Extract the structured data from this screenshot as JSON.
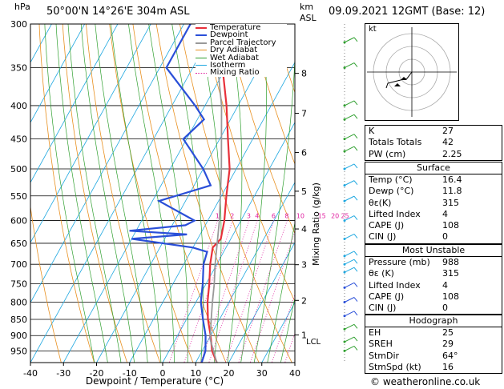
{
  "header": {
    "location": "50°00'N  14°26'E  304m  ASL",
    "datetime": "09.09.2021  12GMT  (Base: 12)",
    "hpa_unit": "hPa",
    "km_unit": "km",
    "asl_unit": "ASL",
    "footer": "© weatheronline.co.uk"
  },
  "colors": {
    "temperature": "#e8303a",
    "dewpoint": "#2a4fd8",
    "parcel": "#999999",
    "dry_adiabat": "#e89020",
    "wet_adiabat": "#30a030",
    "isotherm": "#20a8e0",
    "mixing_ratio": "#e020a0"
  },
  "legend": [
    {
      "label": "Temperature",
      "color": "#e8303a",
      "style": "solid"
    },
    {
      "label": "Dewpoint",
      "color": "#2a4fd8",
      "style": "solid"
    },
    {
      "label": "Parcel Trajectory",
      "color": "#999999",
      "style": "solid"
    },
    {
      "label": "Dry Adiabat",
      "color": "#e89020",
      "style": "solid"
    },
    {
      "label": "Wet Adiabat",
      "color": "#30a030",
      "style": "solid"
    },
    {
      "label": "Isotherm",
      "color": "#20a8e0",
      "style": "solid"
    },
    {
      "label": "Mixing Ratio",
      "color": "#e020a0",
      "style": "dotted"
    }
  ],
  "chart_data": {
    "type": "line",
    "xlabel": "Dewpoint / Temperature (°C)",
    "ylabel_right": "Mixing Ratio (g/kg)",
    "xlim": [
      -40,
      40
    ],
    "ylim": [
      300,
      990
    ],
    "x_ticks": [
      -40,
      -30,
      -20,
      -10,
      0,
      10,
      20,
      30,
      40
    ],
    "pressure_ticks": [
      300,
      350,
      400,
      450,
      500,
      550,
      600,
      650,
      700,
      750,
      800,
      850,
      900,
      950
    ],
    "km_ticks": [
      {
        "label": "8",
        "p": 357
      },
      {
        "label": "7",
        "p": 411
      },
      {
        "label": "6",
        "p": 472
      },
      {
        "label": "5",
        "p": 541
      },
      {
        "label": "4",
        "p": 618
      },
      {
        "label": "3",
        "p": 701
      },
      {
        "label": "2",
        "p": 795
      },
      {
        "label": "1",
        "p": 898
      }
    ],
    "lcl": {
      "label": "LCL",
      "p": 912
    },
    "mixing_ratio_labels": [
      "1",
      "2",
      "3",
      "4",
      "6",
      "8",
      "10",
      "15",
      "20",
      "25"
    ],
    "mixing_ratio_x": [
      -7,
      -2.5,
      2.5,
      5,
      10,
      14,
      17.5,
      24,
      28,
      31
    ],
    "series": [
      {
        "name": "Temperature",
        "points": [
          {
            "p": 990,
            "t": 16.4
          },
          {
            "p": 950,
            "t": 13
          },
          {
            "p": 900,
            "t": 10
          },
          {
            "p": 850,
            "t": 6.5
          },
          {
            "p": 800,
            "t": 3.5
          },
          {
            "p": 750,
            "t": 1
          },
          {
            "p": 700,
            "t": -2
          },
          {
            "p": 660,
            "t": -4
          },
          {
            "p": 640,
            "t": -3
          },
          {
            "p": 600,
            "t": -5
          },
          {
            "p": 550,
            "t": -8.5
          },
          {
            "p": 500,
            "t": -12
          },
          {
            "p": 450,
            "t": -17.5
          },
          {
            "p": 400,
            "t": -23.5
          },
          {
            "p": 350,
            "t": -31
          },
          {
            "p": 300,
            "t": -39
          }
        ]
      },
      {
        "name": "Dewpoint",
        "points": [
          {
            "p": 990,
            "t": 11.8
          },
          {
            "p": 950,
            "t": 11
          },
          {
            "p": 900,
            "t": 8.5
          },
          {
            "p": 850,
            "t": 5
          },
          {
            "p": 800,
            "t": 1.5
          },
          {
            "p": 750,
            "t": -1
          },
          {
            "p": 700,
            "t": -4
          },
          {
            "p": 670,
            "t": -5
          },
          {
            "p": 660,
            "t": -10
          },
          {
            "p": 640,
            "t": -30
          },
          {
            "p": 630,
            "t": -14
          },
          {
            "p": 622,
            "t": -32
          },
          {
            "p": 610,
            "t": -16
          },
          {
            "p": 600,
            "t": -14
          },
          {
            "p": 560,
            "t": -28
          },
          {
            "p": 530,
            "t": -15
          },
          {
            "p": 500,
            "t": -20
          },
          {
            "p": 450,
            "t": -31
          },
          {
            "p": 420,
            "t": -28
          },
          {
            "p": 400,
            "t": -33
          },
          {
            "p": 350,
            "t": -48
          },
          {
            "p": 300,
            "t": -48
          }
        ]
      },
      {
        "name": "Parcel Trajectory",
        "points": [
          {
            "p": 990,
            "t": 16.4
          },
          {
            "p": 912,
            "t": 10.5
          },
          {
            "p": 850,
            "t": 7.5
          },
          {
            "p": 800,
            "t": 5
          },
          {
            "p": 750,
            "t": 2.5
          },
          {
            "p": 700,
            "t": -0.5
          },
          {
            "p": 600,
            "t": -6.5
          },
          {
            "p": 500,
            "t": -14.5
          },
          {
            "p": 400,
            "t": -25
          },
          {
            "p": 300,
            "t": -41
          }
        ]
      }
    ]
  },
  "hodograph": {
    "unit_label": "kt"
  },
  "indices": {
    "k_label": "K",
    "k": "27",
    "tt_label": "Totals Totals",
    "tt": "42",
    "pw_label": "PW (cm)",
    "pw": "2.25"
  },
  "surface": {
    "title": "Surface",
    "rows": [
      {
        "label": "Temp (°C)",
        "value": "16.4"
      },
      {
        "label": "Dewp (°C)",
        "value": "11.8"
      },
      {
        "label": "θε(K)",
        "value": "315"
      },
      {
        "label": "Lifted Index",
        "value": "4"
      },
      {
        "label": "CAPE (J)",
        "value": "108"
      },
      {
        "label": "CIN (J)",
        "value": "0"
      }
    ]
  },
  "most_unstable": {
    "title": "Most Unstable",
    "rows": [
      {
        "label": "Pressure (mb)",
        "value": "988"
      },
      {
        "label": "θε (K)",
        "value": "315"
      },
      {
        "label": "Lifted Index",
        "value": "4"
      },
      {
        "label": "CAPE (J)",
        "value": "108"
      },
      {
        "label": "CIN (J)",
        "value": "0"
      }
    ]
  },
  "hodograph_stats": {
    "title": "Hodograph",
    "rows": [
      {
        "label": "EH",
        "value": "25"
      },
      {
        "label": "SREH",
        "value": "29"
      },
      {
        "label": "StmDir",
        "value": "64°"
      },
      {
        "label": "StmSpd (kt)",
        "value": "16"
      }
    ]
  }
}
